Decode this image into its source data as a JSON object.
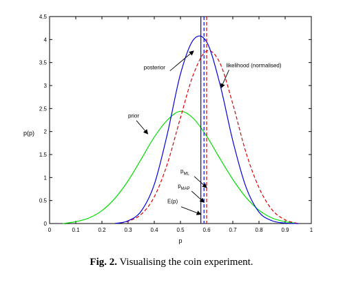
{
  "chart_data": {
    "type": "line",
    "title": "",
    "xlabel": "p",
    "ylabel": "p(p)",
    "xlim": [
      0,
      1
    ],
    "ylim": [
      0,
      4.5
    ],
    "xticks": [
      "0",
      "0.1",
      "0.2",
      "0.3",
      "0.4",
      "0.5",
      "0.6",
      "0.7",
      "0.8",
      "0.9",
      "1"
    ],
    "yticks": [
      "0",
      "0.5",
      "1",
      "1.5",
      "2",
      "2.5",
      "3",
      "3.5",
      "4",
      "4.5"
    ],
    "grid": false,
    "series": [
      {
        "name": "prior",
        "color": "#00dd00",
        "style": "solid",
        "x": [
          0.05,
          0.1,
          0.15,
          0.2,
          0.25,
          0.3,
          0.35,
          0.4,
          0.45,
          0.5,
          0.55,
          0.6,
          0.65,
          0.7,
          0.75,
          0.8,
          0.85,
          0.9,
          0.95
        ],
        "y": [
          0.0,
          0.04,
          0.12,
          0.28,
          0.55,
          0.93,
          1.4,
          1.88,
          2.25,
          2.44,
          2.28,
          1.9,
          1.42,
          0.96,
          0.57,
          0.29,
          0.12,
          0.04,
          0.0
        ]
      },
      {
        "name": "likelihood (normalised)",
        "color": "#dd0000",
        "style": "dashed",
        "x": [
          0.25,
          0.3,
          0.35,
          0.4,
          0.45,
          0.5,
          0.55,
          0.6,
          0.65,
          0.7,
          0.75,
          0.8,
          0.85,
          0.9,
          0.95
        ],
        "y": [
          0.0,
          0.05,
          0.2,
          0.58,
          1.3,
          2.3,
          3.25,
          3.75,
          3.5,
          2.6,
          1.55,
          0.78,
          0.3,
          0.08,
          0.0
        ]
      },
      {
        "name": "posterior",
        "color": "#0000dd",
        "style": "solid",
        "x": [
          0.25,
          0.3,
          0.35,
          0.4,
          0.45,
          0.5,
          0.55,
          0.6,
          0.65,
          0.7,
          0.75,
          0.8,
          0.85,
          0.9,
          0.95
        ],
        "y": [
          0.0,
          0.06,
          0.27,
          0.85,
          1.95,
          3.25,
          4.0,
          3.95,
          3.05,
          1.8,
          0.8,
          0.25,
          0.06,
          0.01,
          0.0
        ]
      }
    ],
    "vlines": [
      {
        "x": 0.578,
        "color": "#0000dd",
        "style": "solid"
      },
      {
        "x": 0.59,
        "color": "#0000dd",
        "style": "dashed"
      },
      {
        "x": 0.6,
        "color": "#dd0000",
        "style": "dashed"
      }
    ],
    "annotations": [
      {
        "text": "posterior",
        "x": 0.36,
        "y": 3.35,
        "arrow_to": [
          0.55,
          3.75
        ]
      },
      {
        "text": "likelihood (normalised)",
        "x": 0.675,
        "y": 3.4,
        "arrow_to": [
          0.655,
          2.95
        ]
      },
      {
        "text": "prior",
        "x": 0.3,
        "y": 2.3,
        "arrow_to": [
          0.375,
          1.95
        ]
      },
      {
        "text": "p_ML",
        "x": 0.5,
        "y": 1.1,
        "arrow_to": [
          0.6,
          0.78
        ]
      },
      {
        "text": "p_MAP",
        "x": 0.49,
        "y": 0.78,
        "arrow_to": [
          0.59,
          0.46
        ]
      },
      {
        "text": "E(p)",
        "x": 0.45,
        "y": 0.44,
        "arrow_to": [
          0.578,
          0.2
        ]
      }
    ]
  },
  "caption": {
    "label": "Fig. 2.",
    "text": " Visualising the coin experiment."
  }
}
